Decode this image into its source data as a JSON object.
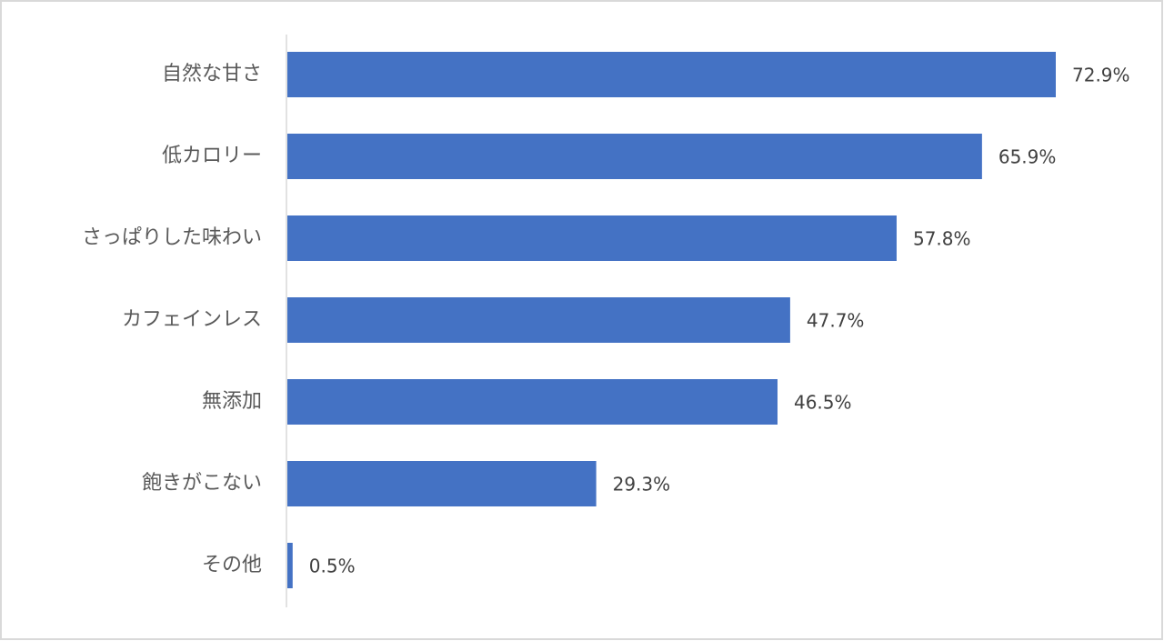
{
  "chart_data": {
    "type": "bar",
    "orientation": "horizontal",
    "categories": [
      "自然な甘さ",
      "低カロリー",
      "さっぱりした味わい",
      "カフェインレス",
      "無添加",
      "飽きがこない",
      "その他"
    ],
    "values": [
      72.9,
      65.9,
      57.8,
      47.7,
      46.5,
      29.3,
      0.5
    ],
    "value_labels": [
      "72.9%",
      "65.9%",
      "57.8%",
      "47.7%",
      "46.5%",
      "29.3%",
      "0.5%"
    ],
    "color": "#4472c4"
  }
}
